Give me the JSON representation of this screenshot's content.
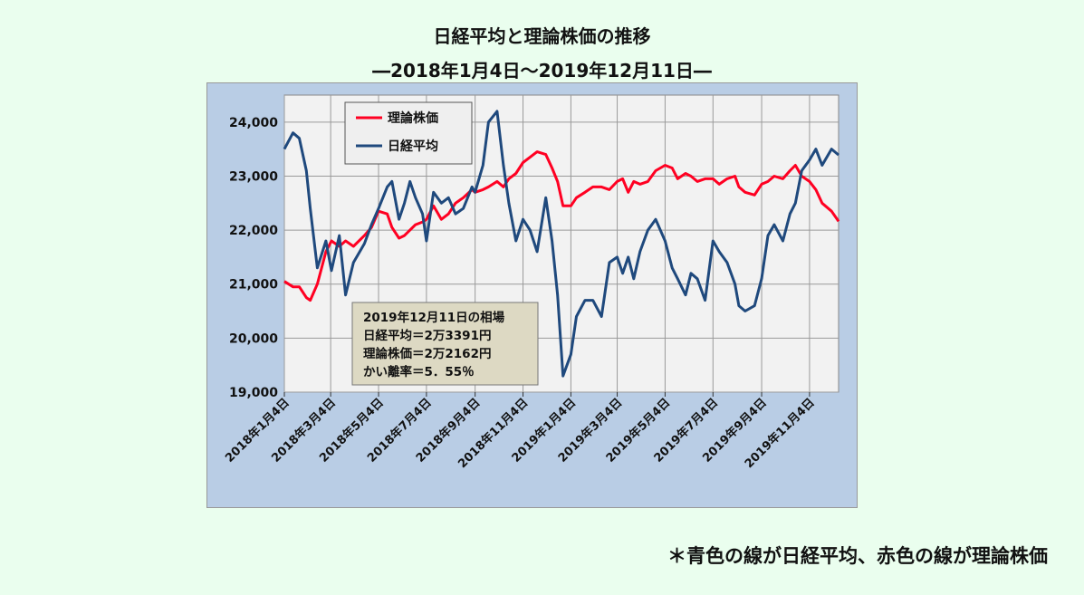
{
  "title_line1": "日経平均と理論株価の推移",
  "title_line2": "―2018年1月4日～2019年12月11日―",
  "footnote": "＊青色の線が日経平均、赤色の線が理論株価",
  "colors": {
    "nikkei": "#1F497D",
    "theory": "#FF0022",
    "plot_bg": "#F2F2F2",
    "frame_bg": "#B9CDE5"
  },
  "chart_data": {
    "type": "line",
    "title": "日経平均と理論株価の推移",
    "subtitle": "―2018年1月4日～2019年12月11日―",
    "xlabel": "",
    "ylabel": "",
    "ylim": [
      19000,
      24500
    ],
    "yticks": [
      19000,
      20000,
      21000,
      22000,
      23000,
      24000
    ],
    "ytick_labels": [
      "19,000",
      "20,000",
      "21,000",
      "22,000",
      "23,000",
      "24,000"
    ],
    "grid": true,
    "legend_position": "top-left",
    "legend": [
      {
        "name": "理論株価",
        "color": "#FF0022"
      },
      {
        "name": "日経平均",
        "color": "#1F497D"
      }
    ],
    "x_tick_labels": [
      "2018年1月4日",
      "2018年3月4日",
      "2018年5月4日",
      "2018年7月4日",
      "2018年9月4日",
      "2018年11月4日",
      "2019年1月4日",
      "2019年3月4日",
      "2019年5月4日",
      "2019年7月4日",
      "2019年9月4日",
      "2019年11月4日"
    ],
    "annotation": {
      "line1": "2019年12月11日の相場",
      "line2": "日経平均＝2万3391円",
      "line3": "理論株価＝2万2162円",
      "line4": "かい離率＝5．55％"
    },
    "x": [
      "2018-01-04",
      "2018-01-15",
      "2018-01-23",
      "2018-02-01",
      "2018-02-06",
      "2018-02-15",
      "2018-02-26",
      "2018-03-05",
      "2018-03-15",
      "2018-03-23",
      "2018-04-02",
      "2018-04-16",
      "2018-04-25",
      "2018-05-04",
      "2018-05-15",
      "2018-05-21",
      "2018-05-30",
      "2018-06-06",
      "2018-06-13",
      "2018-06-20",
      "2018-06-29",
      "2018-07-04",
      "2018-07-13",
      "2018-07-23",
      "2018-08-01",
      "2018-08-10",
      "2018-08-20",
      "2018-08-31",
      "2018-09-04",
      "2018-09-14",
      "2018-09-21",
      "2018-10-02",
      "2018-10-10",
      "2018-10-17",
      "2018-10-26",
      "2018-11-04",
      "2018-11-13",
      "2018-11-22",
      "2018-12-03",
      "2018-12-11",
      "2018-12-18",
      "2018-12-25",
      "2019-01-04",
      "2019-01-11",
      "2019-01-22",
      "2019-02-01",
      "2019-02-12",
      "2019-02-22",
      "2019-03-04",
      "2019-03-11",
      "2019-03-18",
      "2019-03-25",
      "2019-04-02",
      "2019-04-12",
      "2019-04-22",
      "2019-05-04",
      "2019-05-13",
      "2019-05-20",
      "2019-05-30",
      "2019-06-06",
      "2019-06-14",
      "2019-06-24",
      "2019-07-04",
      "2019-07-12",
      "2019-07-22",
      "2019-08-01",
      "2019-08-06",
      "2019-08-14",
      "2019-08-26",
      "2019-09-04",
      "2019-09-12",
      "2019-09-20",
      "2019-10-01",
      "2019-10-10",
      "2019-10-17",
      "2019-10-25",
      "2019-11-04",
      "2019-11-12",
      "2019-11-20",
      "2019-12-02",
      "2019-12-11"
    ],
    "series": [
      {
        "name": "日経平均",
        "color": "#1F497D",
        "values": [
          23500,
          23800,
          23700,
          23100,
          22400,
          21300,
          21800,
          21250,
          21900,
          20800,
          21400,
          21750,
          22100,
          22400,
          22800,
          22900,
          22200,
          22500,
          22900,
          22600,
          22300,
          21800,
          22700,
          22500,
          22600,
          22300,
          22400,
          22800,
          22700,
          23200,
          24000,
          24200,
          23200,
          22500,
          21800,
          22200,
          22000,
          21600,
          22600,
          21800,
          20800,
          19300,
          19700,
          20400,
          20700,
          20700,
          20400,
          21400,
          21500,
          21200,
          21500,
          21100,
          21600,
          22000,
          22200,
          21800,
          21300,
          21100,
          20800,
          21200,
          21100,
          20700,
          21800,
          21600,
          21400,
          21000,
          20600,
          20500,
          20600,
          21100,
          21900,
          22100,
          21800,
          22300,
          22500,
          23100,
          23300,
          23500,
          23200,
          23500,
          23391
        ]
      },
      {
        "name": "理論株価",
        "color": "#FF0022",
        "values": [
          21050,
          20950,
          20950,
          20750,
          20700,
          21000,
          21600,
          21800,
          21700,
          21800,
          21700,
          21900,
          22050,
          22350,
          22300,
          22050,
          21850,
          21900,
          22000,
          22100,
          22150,
          22200,
          22450,
          22200,
          22300,
          22500,
          22600,
          22750,
          22700,
          22750,
          22800,
          22900,
          22800,
          22950,
          23050,
          23250,
          23350,
          23450,
          23400,
          23150,
          22900,
          22450,
          22450,
          22600,
          22700,
          22800,
          22800,
          22750,
          22900,
          22950,
          22700,
          22900,
          22850,
          22900,
          23100,
          23200,
          23150,
          22950,
          23050,
          23000,
          22900,
          22950,
          22950,
          22850,
          22950,
          23000,
          22800,
          22700,
          22650,
          22850,
          22900,
          23000,
          22950,
          23100,
          23200,
          23000,
          22900,
          22750,
          22500,
          22350,
          22162
        ]
      }
    ]
  }
}
